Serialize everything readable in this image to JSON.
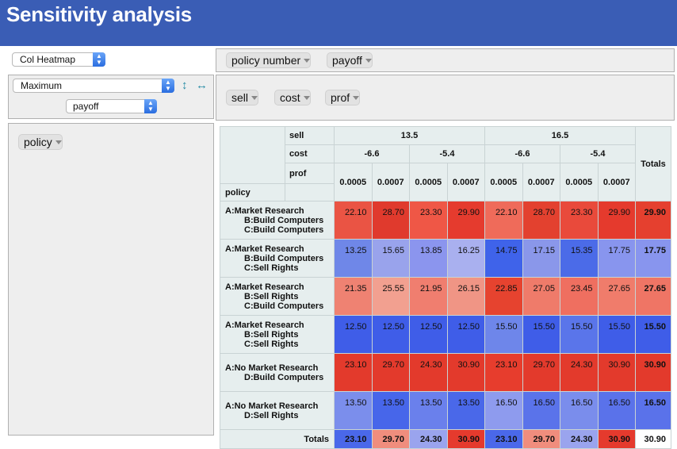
{
  "header": {
    "title": "Sensitivity analysis"
  },
  "controls": {
    "renderer": "Col Heatmap",
    "aggregator": "Maximum",
    "value_field": "payoff"
  },
  "unused_fields": [
    "policy number",
    "payoff"
  ],
  "column_fields": [
    "sell",
    "cost",
    "prof"
  ],
  "row_fields": [
    "policy"
  ],
  "table": {
    "sell_label": "sell",
    "cost_label": "cost",
    "prof_label": "prof",
    "policy_label": "policy",
    "totals_label": "Totals",
    "sell_values": [
      "13.5",
      "16.5"
    ],
    "cost_values": [
      "-6.6",
      "-5.4",
      "-6.6",
      "-5.4"
    ],
    "prof_values": [
      "0.0005",
      "0.0007",
      "0.0005",
      "0.0007",
      "0.0005",
      "0.0007",
      "0.0005",
      "0.0007"
    ],
    "rows": [
      {
        "lines": [
          "A:Market Research",
          "B:Build Computers",
          "C:Build Computers"
        ],
        "values": [
          "22.10",
          "28.70",
          "23.30",
          "29.90",
          "22.10",
          "28.70",
          "23.30",
          "29.90"
        ],
        "total": "29.90",
        "colors": [
          "#ea5444",
          "#e03a2d",
          "#ef5746",
          "#e53b2e",
          "#ef6b5a",
          "#e3412f",
          "#e94a3b",
          "#e53a2d"
        ],
        "total_color": "#e5402f"
      },
      {
        "lines": [
          "A:Market Research",
          "B:Build Computers",
          "C:Sell Rights"
        ],
        "values": [
          "13.25",
          "15.65",
          "13.85",
          "16.25",
          "14.75",
          "17.15",
          "15.35",
          "17.75"
        ],
        "total": "17.75",
        "colors": [
          "#6f87e8",
          "#99a3ec",
          "#8b95ee",
          "#a9b0ef",
          "#3f63ea",
          "#8a97ea",
          "#4b6be8",
          "#8895ee"
        ],
        "total_color": "#8895ee"
      },
      {
        "lines": [
          "A:Market Research",
          "B:Sell Rights",
          "C:Build Computers"
        ],
        "values": [
          "21.35",
          "25.55",
          "21.95",
          "26.15",
          "22.85",
          "27.05",
          "23.45",
          "27.65"
        ],
        "total": "27.65",
        "colors": [
          "#ef8272",
          "#f2a090",
          "#f07e6f",
          "#f09585",
          "#e6432f",
          "#ef7b6a",
          "#ef6f60",
          "#f07c6b"
        ],
        "total_color": "#ef7565"
      },
      {
        "lines": [
          "A:Market Research",
          "B:Sell Rights",
          "C:Sell Rights"
        ],
        "values": [
          "12.50",
          "12.50",
          "12.50",
          "12.50",
          "15.50",
          "15.50",
          "15.50",
          "15.50"
        ],
        "total": "15.50",
        "colors": [
          "#3f5de8",
          "#3f5de8",
          "#3f5de8",
          "#3f5de8",
          "#6e86ea",
          "#3f5de8",
          "#5a75ea",
          "#3f5de8"
        ],
        "total_color": "#3f5de8"
      },
      {
        "lines": [
          "A:No Market Research",
          "D:Build Computers"
        ],
        "values": [
          "23.10",
          "29.70",
          "24.30",
          "30.90",
          "23.10",
          "29.70",
          "24.30",
          "30.90"
        ],
        "total": "30.90",
        "colors": [
          "#e33a2c",
          "#e33a2c",
          "#e33a2c",
          "#e33a2c",
          "#e73d2d",
          "#e33a2c",
          "#e33a2c",
          "#e33a2c"
        ],
        "total_color": "#e33a2c"
      },
      {
        "lines": [
          "A:No Market Research",
          "D:Sell Rights"
        ],
        "values": [
          "13.50",
          "13.50",
          "13.50",
          "13.50",
          "16.50",
          "16.50",
          "16.50",
          "16.50"
        ],
        "total": "16.50",
        "colors": [
          "#7b8eec",
          "#4766ea",
          "#6a80ec",
          "#4a68e9",
          "#8e9bee",
          "#5a73ea",
          "#7a8dec",
          "#5a72ea"
        ],
        "total_color": "#5a72ea"
      }
    ],
    "totals": {
      "values": [
        "23.10",
        "29.70",
        "24.30",
        "30.90",
        "23.10",
        "29.70",
        "24.30",
        "30.90"
      ],
      "colors": [
        "#4a68ea",
        "#f08d7d",
        "#9aa4ee",
        "#e53a2d",
        "#4a68ea",
        "#f08d7d",
        "#9aa4ee",
        "#e53a2d"
      ],
      "grand": "30.90"
    }
  }
}
